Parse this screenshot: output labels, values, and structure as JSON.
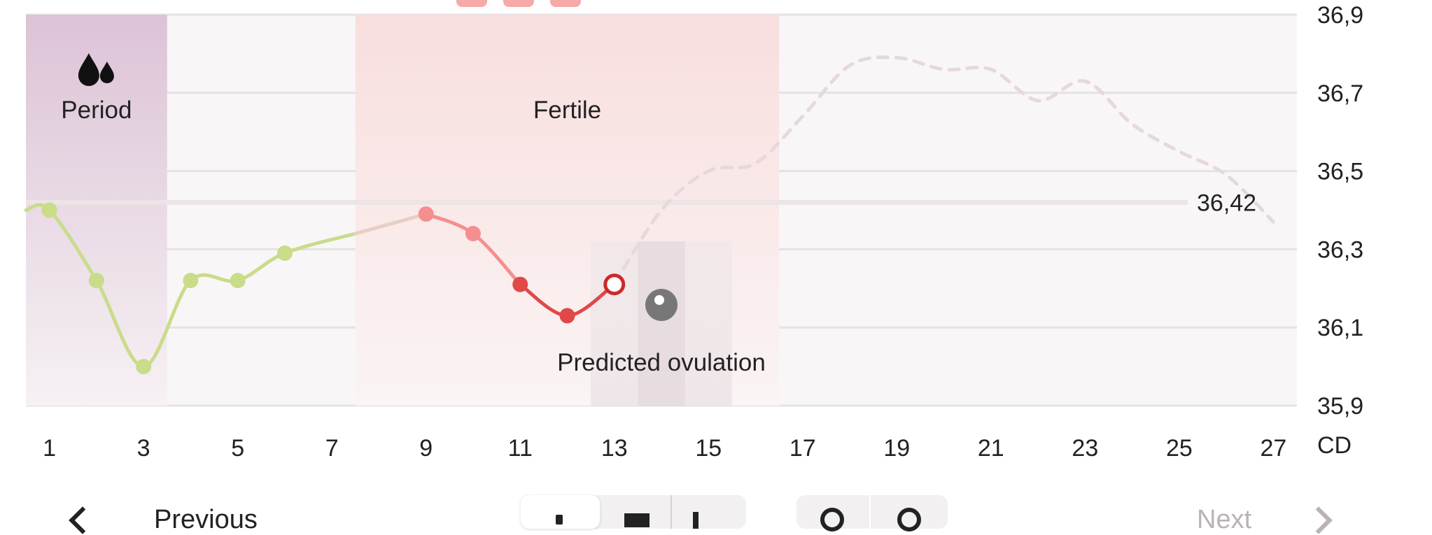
{
  "chart_data": {
    "type": "line",
    "x_axis": {
      "min": 0.5,
      "max": 27.5,
      "tick_labels": [
        "1",
        "3",
        "5",
        "7",
        "9",
        "11",
        "13",
        "15",
        "17",
        "19",
        "21",
        "23",
        "25",
        "27"
      ],
      "unit_label": "CD"
    },
    "y_axis": {
      "min": 35.9,
      "max": 36.9,
      "tick_labels": [
        "36,9",
        "36,7",
        "36,5",
        "36,3",
        "36,1",
        "35,9"
      ],
      "gridlines": true,
      "position": "right"
    },
    "phases": [
      {
        "label": "Period",
        "start_day": 1,
        "end_day": 3,
        "color": "#dcc3d6",
        "icon": "drops-icon"
      },
      {
        "label": "Fertile",
        "start_day": 8,
        "end_day": 16,
        "color": "#f9dede"
      }
    ],
    "predicted_ovulation": {
      "label": "Predicted ovulation",
      "day": 14,
      "window_start_day": 13,
      "window_end_day": 15
    },
    "reference_line": {
      "value": 36.42,
      "label": "36,42"
    },
    "series": [
      {
        "kind": "measured",
        "points": [
          {
            "x": 1,
            "y": 36.4
          },
          {
            "x": 2,
            "y": 36.22
          },
          {
            "x": 3,
            "y": 36.0
          },
          {
            "x": 4,
            "y": 36.22
          },
          {
            "x": 5,
            "y": 36.22
          },
          {
            "x": 6,
            "y": 36.29
          },
          {
            "x": 7.5,
            "y": 36.34
          },
          {
            "x": 9,
            "y": 36.39
          },
          {
            "x": 10,
            "y": 36.34
          },
          {
            "x": 11,
            "y": 36.21
          },
          {
            "x": 12,
            "y": 36.13
          },
          {
            "x": 13,
            "y": 36.21
          }
        ],
        "colors": {
          "normal": "#c9dc8a",
          "fertile_light": "#f58f8f",
          "fertile_dark": "#e14848",
          "today_ring": "#cc2a2a"
        }
      },
      {
        "kind": "predicted",
        "points": [
          {
            "x": 13,
            "y": 36.21
          },
          {
            "x": 14,
            "y": 36.4
          },
          {
            "x": 15,
            "y": 36.5
          },
          {
            "x": 16,
            "y": 36.52
          },
          {
            "x": 17,
            "y": 36.64
          },
          {
            "x": 18,
            "y": 36.77
          },
          {
            "x": 19,
            "y": 36.79
          },
          {
            "x": 20,
            "y": 36.76
          },
          {
            "x": 21,
            "y": 36.76
          },
          {
            "x": 22,
            "y": 36.68
          },
          {
            "x": 23,
            "y": 36.73
          },
          {
            "x": 24,
            "y": 36.62
          },
          {
            "x": 25,
            "y": 36.55
          },
          {
            "x": 26,
            "y": 36.49
          },
          {
            "x": 27,
            "y": 36.37
          }
        ],
        "color": "#e6d8db"
      }
    ]
  },
  "nav": {
    "prev_label": "Previous",
    "next_label": "Next"
  }
}
